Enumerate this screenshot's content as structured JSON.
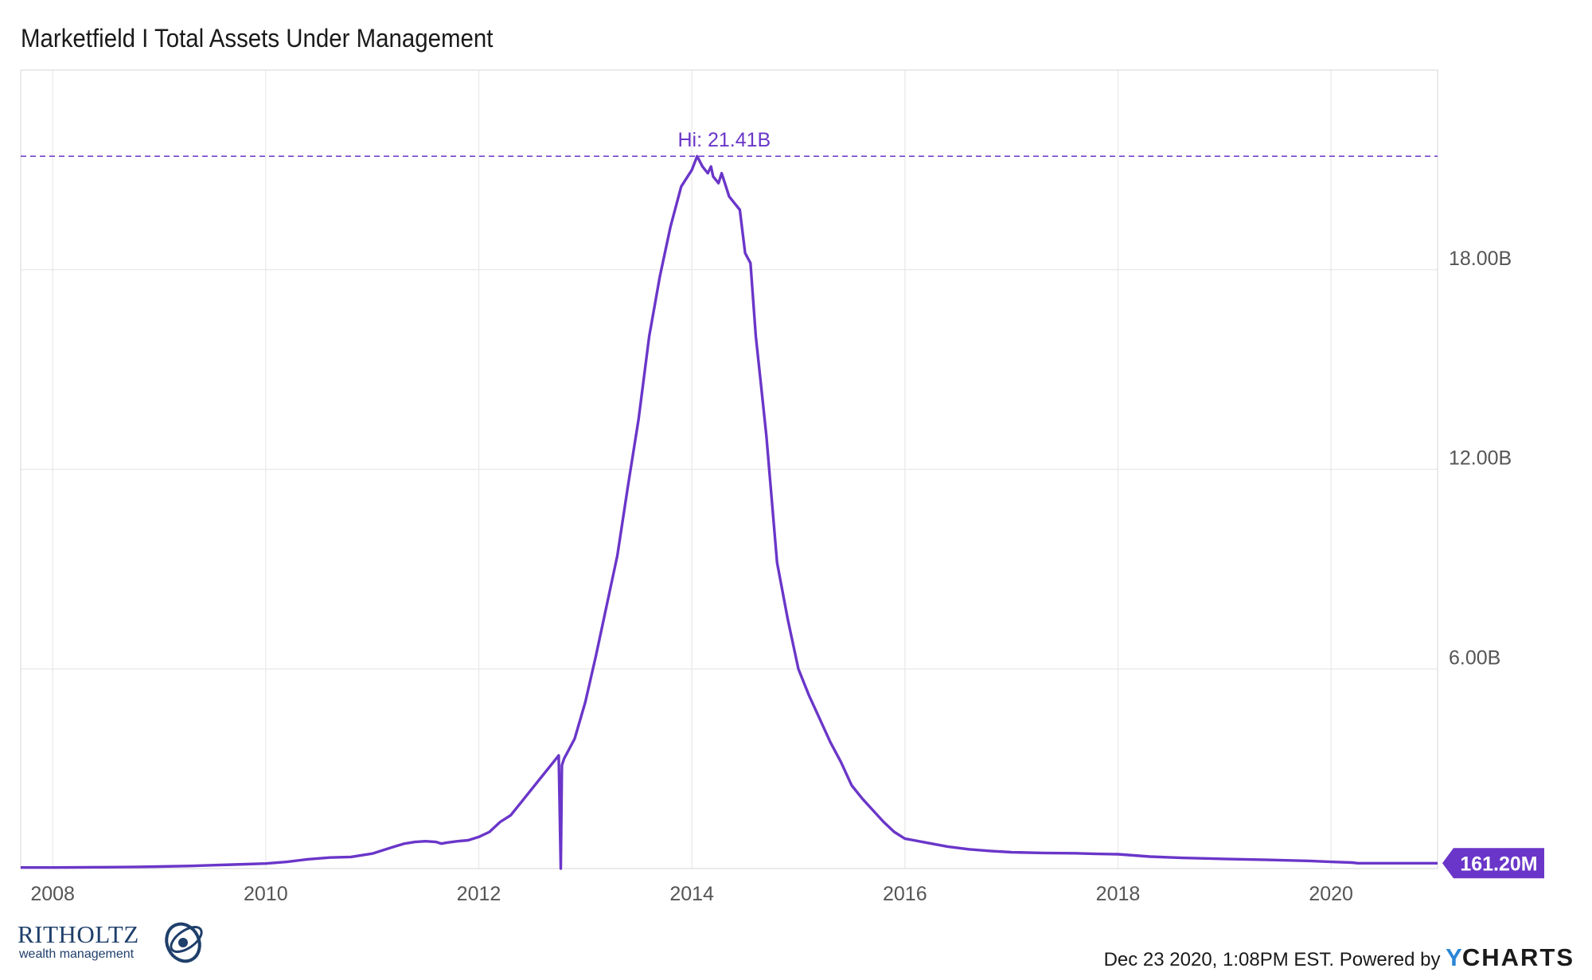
{
  "chart_data": {
    "type": "line",
    "title": "Marketfield I Total Assets Under Management",
    "series": [
      {
        "color": "#6a36c9",
        "x": [
          2007.7,
          2008.0,
          2008.5,
          2008.8,
          2009.0,
          2009.3,
          2009.5,
          2009.7,
          2010.0,
          2010.2,
          2010.4,
          2010.6,
          2010.8,
          2011.0,
          2011.1,
          2011.2,
          2011.3,
          2011.4,
          2011.5,
          2011.6,
          2011.65,
          2011.7,
          2011.8,
          2011.9,
          2012.0,
          2012.1,
          2012.15,
          2012.2,
          2012.3,
          2012.4,
          2012.5,
          2012.6,
          2012.7,
          2012.75,
          2012.77,
          2012.78,
          2012.8,
          2012.9,
          2013.0,
          2013.1,
          2013.2,
          2013.3,
          2013.4,
          2013.5,
          2013.6,
          2013.7,
          2013.8,
          2013.9,
          2014.0,
          2014.05,
          2014.1,
          2014.15,
          2014.18,
          2014.2,
          2014.25,
          2014.28,
          2014.3,
          2014.35,
          2014.4,
          2014.45,
          2014.5,
          2014.55,
          2014.6,
          2014.65,
          2014.7,
          2014.8,
          2014.9,
          2015.0,
          2015.1,
          2015.2,
          2015.3,
          2015.4,
          2015.5,
          2015.6,
          2015.7,
          2015.8,
          2015.9,
          2016.0,
          2016.2,
          2016.4,
          2016.6,
          2016.8,
          2017.0,
          2017.3,
          2017.6,
          2017.8,
          2018.0,
          2018.3,
          2018.6,
          2019.0,
          2019.4,
          2019.8,
          2020.0,
          2020.2,
          2020.25,
          2020.5,
          2020.8,
          2021.0
        ],
        "values": [
          0.03,
          0.03,
          0.04,
          0.05,
          0.06,
          0.08,
          0.1,
          0.12,
          0.15,
          0.2,
          0.28,
          0.33,
          0.35,
          0.45,
          0.55,
          0.65,
          0.75,
          0.8,
          0.82,
          0.8,
          0.75,
          0.78,
          0.82,
          0.85,
          0.95,
          1.1,
          1.25,
          1.4,
          1.6,
          2.0,
          2.4,
          2.8,
          3.2,
          3.4,
          0.0,
          3.1,
          3.3,
          3.9,
          5.0,
          6.4,
          7.9,
          9.4,
          11.5,
          13.5,
          16.0,
          17.8,
          19.3,
          20.5,
          21.0,
          21.41,
          21.1,
          20.9,
          21.1,
          20.8,
          20.6,
          20.9,
          20.7,
          20.2,
          20.0,
          19.8,
          18.5,
          18.2,
          16.0,
          14.5,
          13.0,
          9.2,
          7.5,
          6.0,
          5.2,
          4.5,
          3.8,
          3.2,
          2.5,
          2.1,
          1.75,
          1.4,
          1.1,
          0.9,
          0.78,
          0.66,
          0.58,
          0.53,
          0.49,
          0.47,
          0.46,
          0.44,
          0.43,
          0.36,
          0.32,
          0.29,
          0.26,
          0.23,
          0.2,
          0.18,
          0.16,
          0.16,
          0.16,
          0.1612
        ]
      }
    ],
    "xticks": [
      "2008",
      "2010",
      "2012",
      "2014",
      "2016",
      "2018",
      "2020"
    ],
    "xtick_values": [
      2008,
      2010,
      2012,
      2014,
      2016,
      2018,
      2020
    ],
    "yticks": [
      "6.00B",
      "12.00B",
      "18.00B"
    ],
    "ytick_values": [
      6,
      12,
      18
    ],
    "xlim": [
      2007.7,
      2021.0
    ],
    "ylim": [
      0,
      24
    ],
    "grid": true,
    "high_annotation": "Hi: 21.41B",
    "high_value": 21.41,
    "last_value_label": "161.20M"
  },
  "footer": {
    "timestamp": "Dec 23 2020, 1:08PM EST. Powered by",
    "brand_y": "Y",
    "brand_rest": "CHARTS"
  },
  "logo": {
    "name": "RITHOLTZ",
    "subtitle": "wealth management"
  }
}
